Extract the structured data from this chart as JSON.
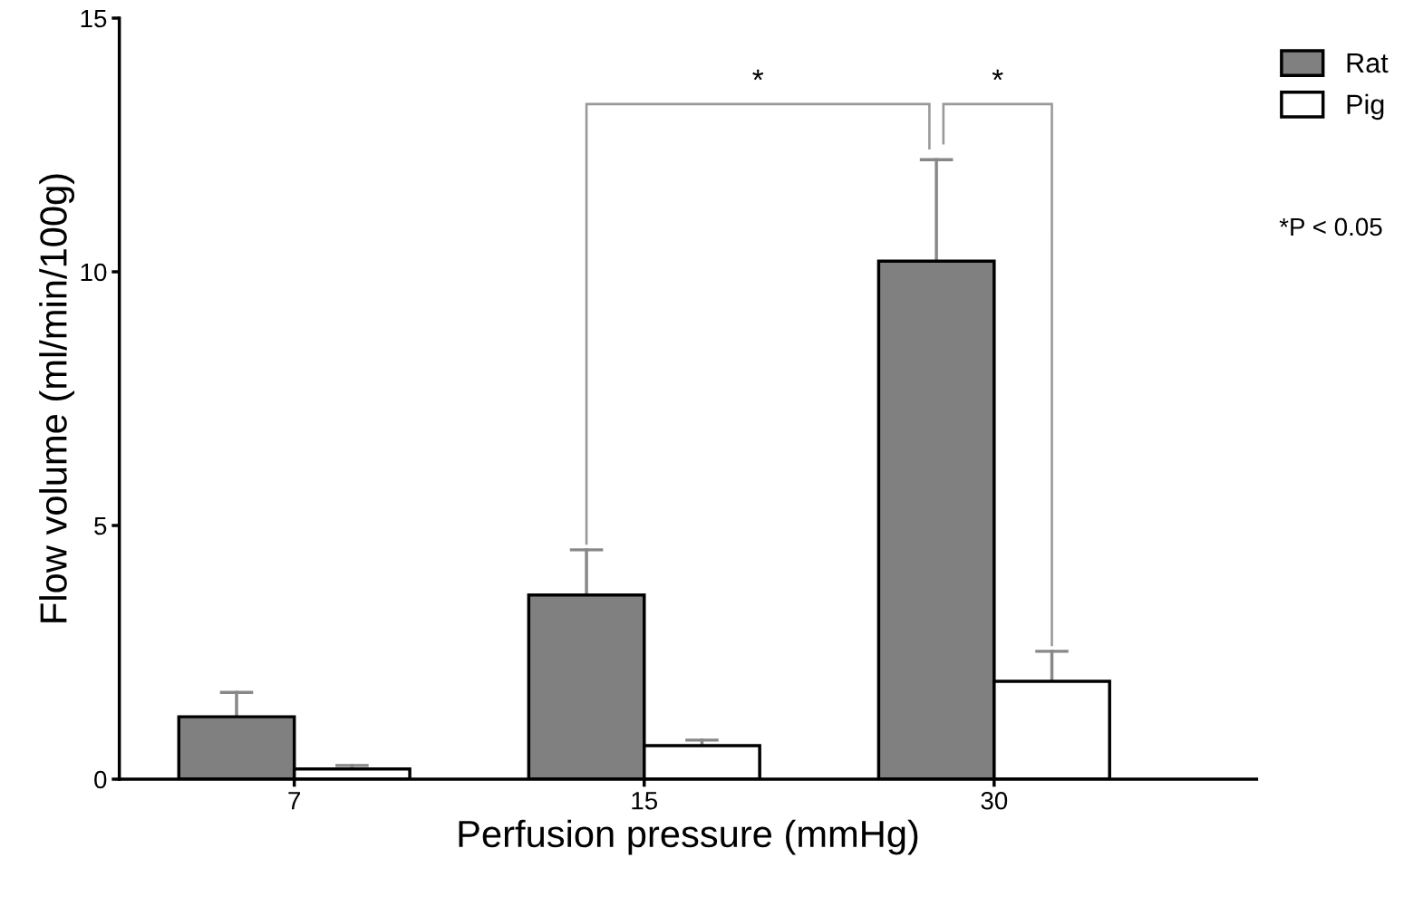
{
  "chart_data": {
    "type": "bar",
    "xlabel": "Perfusion pressure (mmHg)",
    "ylabel": "Flow volume (ml/min/100g)",
    "categories": [
      "7",
      "15",
      "30"
    ],
    "series": [
      {
        "name": "Rat",
        "color": "#808080",
        "values": [
          1.23,
          3.63,
          10.21
        ],
        "errors": [
          [
            1.23,
            1.71
          ],
          [
            3.63,
            4.52
          ],
          [
            10.21,
            12.21
          ]
        ]
      },
      {
        "name": "Pig",
        "color": "#ffffff",
        "values": [
          0.2,
          0.66,
          1.93
        ],
        "errors": [
          [
            0.2,
            0.27
          ],
          [
            0.66,
            0.77
          ],
          [
            1.93,
            2.52
          ]
        ]
      }
    ],
    "ylim": [
      0,
      15
    ],
    "yticks": [
      0,
      5,
      10,
      15
    ],
    "grid": false,
    "legend": "top right",
    "annotations": [
      "*",
      "*",
      "*P < 0.05"
    ]
  }
}
